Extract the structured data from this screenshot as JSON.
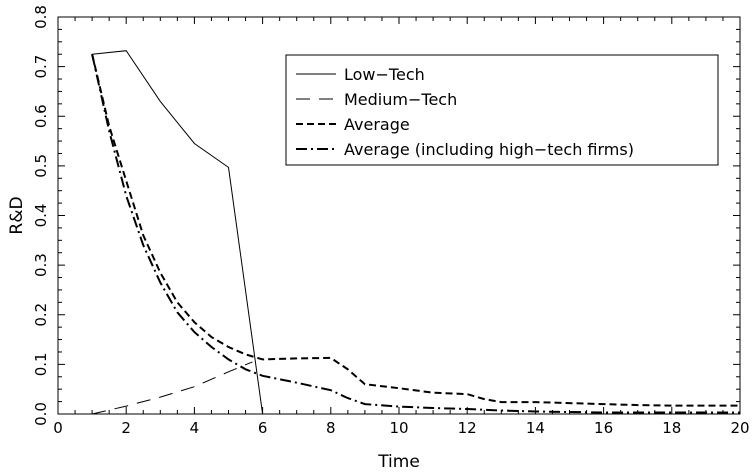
{
  "chart_data": {
    "type": "line",
    "title": "",
    "xlabel": "Time",
    "ylabel": "R&D",
    "xlim": [
      0,
      20
    ],
    "ylim": [
      0,
      0.8
    ],
    "xticks": [
      0,
      2,
      4,
      6,
      8,
      10,
      12,
      14,
      16,
      18,
      20
    ],
    "xtick_labels": [
      "0",
      "2",
      "4",
      "6",
      "8",
      "10",
      "12",
      "14",
      "16",
      "18",
      "20"
    ],
    "yticks": [
      0,
      0.1,
      0.2,
      0.3,
      0.4,
      0.5,
      0.6,
      0.7,
      0.8
    ],
    "ytick_labels": [
      "0.0",
      "0.1",
      "0.2",
      "0.3",
      "0.4",
      "0.5",
      "0.6",
      "0.7",
      "0.8"
    ],
    "grid": false,
    "legend_position": "top-right",
    "series": [
      {
        "name": "Low−Tech",
        "style": "solid",
        "x": [
          1,
          2,
          3,
          4,
          5,
          6
        ],
        "y": [
          0.725,
          0.732,
          0.63,
          0.545,
          0.497,
          0.0
        ]
      },
      {
        "name": "Medium−Tech",
        "style": "long-dash",
        "x": [
          1,
          2,
          3,
          4,
          5,
          5.7
        ],
        "y": [
          0.0,
          0.016,
          0.034,
          0.055,
          0.085,
          0.105
        ]
      },
      {
        "name": "Average",
        "style": "dash",
        "x": [
          1,
          1.5,
          2,
          2.5,
          3,
          3.5,
          4,
          4.5,
          5,
          5.5,
          6,
          7,
          8,
          8.5,
          9,
          10,
          11,
          12,
          12.5,
          13,
          14,
          15,
          16,
          17,
          18,
          19,
          20
        ],
        "y": [
          0.725,
          0.58,
          0.47,
          0.36,
          0.285,
          0.225,
          0.185,
          0.155,
          0.135,
          0.12,
          0.11,
          0.112,
          0.113,
          0.09,
          0.06,
          0.052,
          0.043,
          0.04,
          0.03,
          0.024,
          0.024,
          0.022,
          0.02,
          0.018,
          0.017,
          0.017,
          0.017
        ]
      },
      {
        "name": "Average (including high−tech firms)",
        "style": "dash-dot",
        "x": [
          1,
          1.5,
          2,
          2.5,
          3,
          3.5,
          4,
          4.5,
          5,
          5.5,
          6,
          7,
          8,
          8.5,
          9,
          10,
          11,
          12,
          13,
          14,
          15,
          16,
          17,
          18,
          19,
          20
        ],
        "y": [
          0.725,
          0.57,
          0.44,
          0.34,
          0.265,
          0.205,
          0.165,
          0.135,
          0.11,
          0.09,
          0.077,
          0.063,
          0.048,
          0.032,
          0.02,
          0.015,
          0.012,
          0.01,
          0.007,
          0.005,
          0.004,
          0.003,
          0.003,
          0.003,
          0.003,
          0.003
        ]
      }
    ]
  }
}
